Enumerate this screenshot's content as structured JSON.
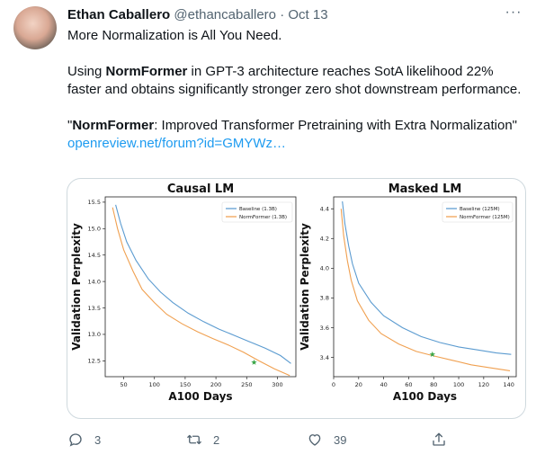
{
  "tweet": {
    "author_name": "Ethan Caballero",
    "handle": "@ethancaballero",
    "separator": "·",
    "date": "Oct 13",
    "text_line1": "More Normalization is All You Need.",
    "para2_pre": "Using ",
    "para2_bold": "NormFormer",
    "para2_post": " in GPT-3 architecture reaches SotA likelihood 22% faster and obtains significantly stronger zero shot downstream performance.",
    "quote_open": "\"",
    "quote_bold": "NormFormer",
    "quote_rest": ": Improved Transformer Pretraining with Extra Normalization\"",
    "link_text": "openreview.net/forum?id=GMYWz…",
    "more_glyph": "···"
  },
  "actions": {
    "reply_count": "3",
    "retweet_count": "2",
    "like_count": "39",
    "reply_icon": "speech-bubble-icon",
    "retweet_icon": "retweet-icon",
    "like_icon": "heart-icon",
    "share_icon": "share-icon"
  },
  "colors": {
    "baseline": "#5b9bd0",
    "normformer": "#f0a050",
    "marker": "#3aa647"
  },
  "chart_data": [
    {
      "type": "line",
      "title": "Causal LM",
      "xlabel": "A100 Days",
      "ylabel": "Validation Perplexity",
      "xlim": [
        20,
        330
      ],
      "ylim": [
        12.2,
        15.6
      ],
      "xticks": [
        "50",
        "100",
        "150",
        "200",
        "250",
        "300"
      ],
      "yticks": [
        "12.5",
        "13.0",
        "13.5",
        "14.0",
        "14.5",
        "15.0",
        "15.5"
      ],
      "legend_position": "top-right",
      "series": [
        {
          "name": "Baseline (1.3B)",
          "x": [
            37,
            45,
            55,
            70,
            90,
            110,
            130,
            155,
            180,
            205,
            230,
            255,
            280,
            305,
            322
          ],
          "values": [
            15.45,
            15.1,
            14.75,
            14.4,
            14.05,
            13.8,
            13.6,
            13.4,
            13.24,
            13.1,
            12.98,
            12.86,
            12.74,
            12.6,
            12.45
          ]
        },
        {
          "name": "NormFormer (1.3B)",
          "x": [
            32,
            40,
            50,
            65,
            80,
            100,
            120,
            145,
            170,
            195,
            220,
            245,
            270,
            295,
            320
          ],
          "values": [
            15.4,
            15.0,
            14.6,
            14.2,
            13.85,
            13.6,
            13.38,
            13.2,
            13.05,
            12.92,
            12.8,
            12.66,
            12.5,
            12.35,
            12.22
          ]
        }
      ],
      "marker": {
        "x": 262,
        "y": 12.47
      }
    },
    {
      "type": "line",
      "title": "Masked LM",
      "xlabel": "A100 Days",
      "ylabel": "Validation Perplexity",
      "xlim": [
        0,
        146
      ],
      "ylim": [
        3.27,
        4.48
      ],
      "xticks": [
        "0",
        "20",
        "40",
        "60",
        "80",
        "100",
        "120",
        "140"
      ],
      "yticks": [
        "3.4",
        "3.6",
        "3.8",
        "4.0",
        "4.2",
        "4.4"
      ],
      "legend_position": "top-right",
      "series": [
        {
          "name": "Baseline (125M)",
          "x": [
            7,
            9,
            12,
            15,
            20,
            30,
            40,
            55,
            70,
            85,
            100,
            115,
            130,
            142
          ],
          "values": [
            4.45,
            4.3,
            4.15,
            4.03,
            3.9,
            3.77,
            3.68,
            3.6,
            3.54,
            3.5,
            3.47,
            3.45,
            3.43,
            3.42
          ]
        },
        {
          "name": "NormFormer (125M)",
          "x": [
            6,
            8,
            11,
            14,
            19,
            28,
            38,
            52,
            66,
            80,
            95,
            110,
            125,
            141
          ],
          "values": [
            4.4,
            4.22,
            4.05,
            3.92,
            3.78,
            3.65,
            3.56,
            3.49,
            3.44,
            3.41,
            3.38,
            3.35,
            3.33,
            3.31
          ]
        }
      ],
      "marker": {
        "x": 79,
        "y": 3.42
      }
    }
  ]
}
